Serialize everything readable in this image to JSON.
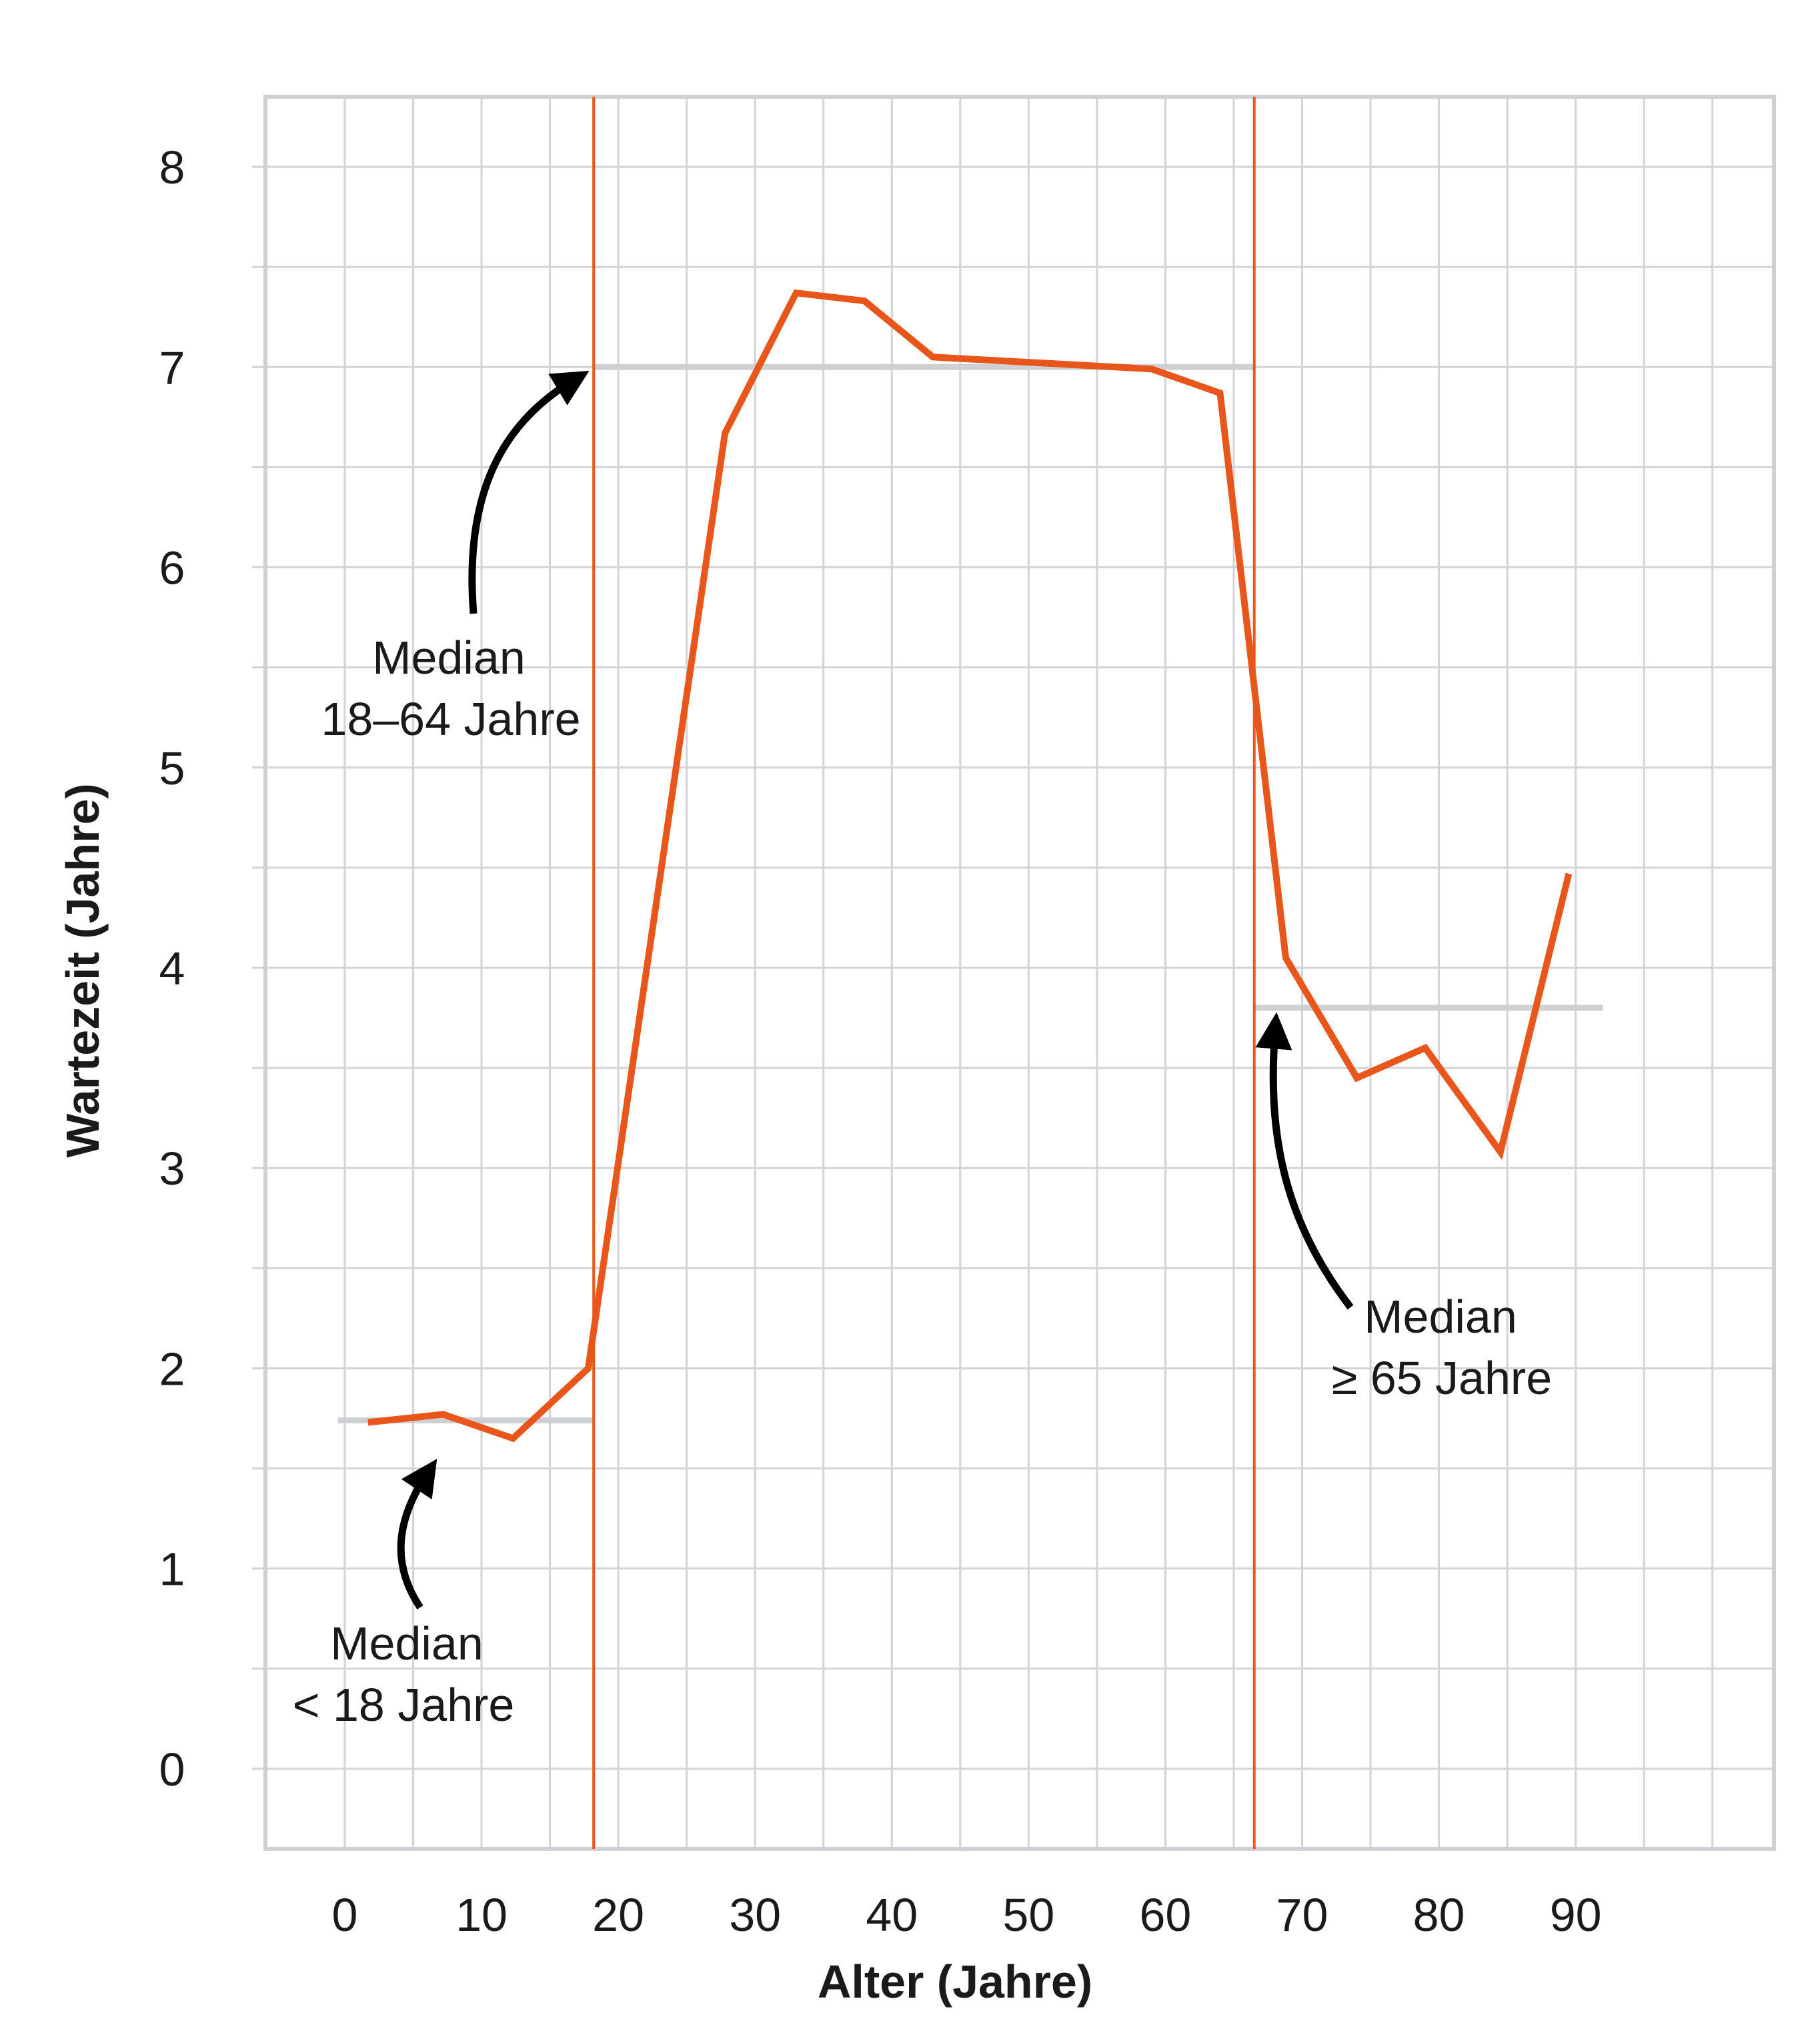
{
  "chart_data": {
    "type": "line",
    "xlabel": "Alter (Jahre)",
    "ylabel": "Wartezeit (Jahre)",
    "xlim": [
      -5.8,
      104.5
    ],
    "ylim": [
      -0.4,
      8.35
    ],
    "x_ticks": [
      0,
      10,
      20,
      30,
      40,
      50,
      60,
      70,
      80,
      90
    ],
    "y_ticks": [
      0,
      1,
      2,
      3,
      4,
      5,
      6,
      7,
      8
    ],
    "x_grid_step": 5,
    "y_grid_step": 0.5,
    "grid": true,
    "series": [
      {
        "color": "#e8561c",
        "x": [
          1.7,
          7.2,
          12.3,
          17.8,
          27.8,
          33.0,
          38.0,
          43.0,
          59.0,
          64.0,
          68.8,
          74.0,
          79.0,
          84.5,
          89.5
        ],
        "y": [
          1.73,
          1.77,
          1.65,
          2.0,
          6.67,
          7.37,
          7.33,
          7.05,
          6.99,
          6.87,
          4.05,
          3.45,
          3.6,
          3.08,
          4.47
        ]
      }
    ],
    "reference_lines": {
      "vertical": [
        {
          "x": 18.2,
          "color": "#e8561c"
        },
        {
          "x": 66.5,
          "color": "#e8561c"
        }
      ],
      "medians": [
        {
          "x_start": -0.5,
          "x_end": 18.2,
          "y": 1.74,
          "color": "#cfd0d4"
        },
        {
          "x_start": 18.2,
          "x_end": 66.5,
          "y": 7.0,
          "color": "#cfd0d4"
        },
        {
          "x_start": 66.5,
          "x_end": 92.0,
          "y": 3.8,
          "color": "#cfd0d4"
        }
      ]
    },
    "annotations": [
      {
        "lines": [
          "Median",
          "< 18 Jahre"
        ]
      },
      {
        "lines": [
          "Median",
          "18–64 Jahre"
        ]
      },
      {
        "lines": [
          "Median",
          "≥ 65 Jahre"
        ]
      }
    ],
    "colors": {
      "line": "#e8561c",
      "grid": "#d3d3d8",
      "frame": "#cfd0d4",
      "median": "#cfd0d4",
      "arrow": "#000000",
      "text": "#1a1a1a"
    }
  }
}
